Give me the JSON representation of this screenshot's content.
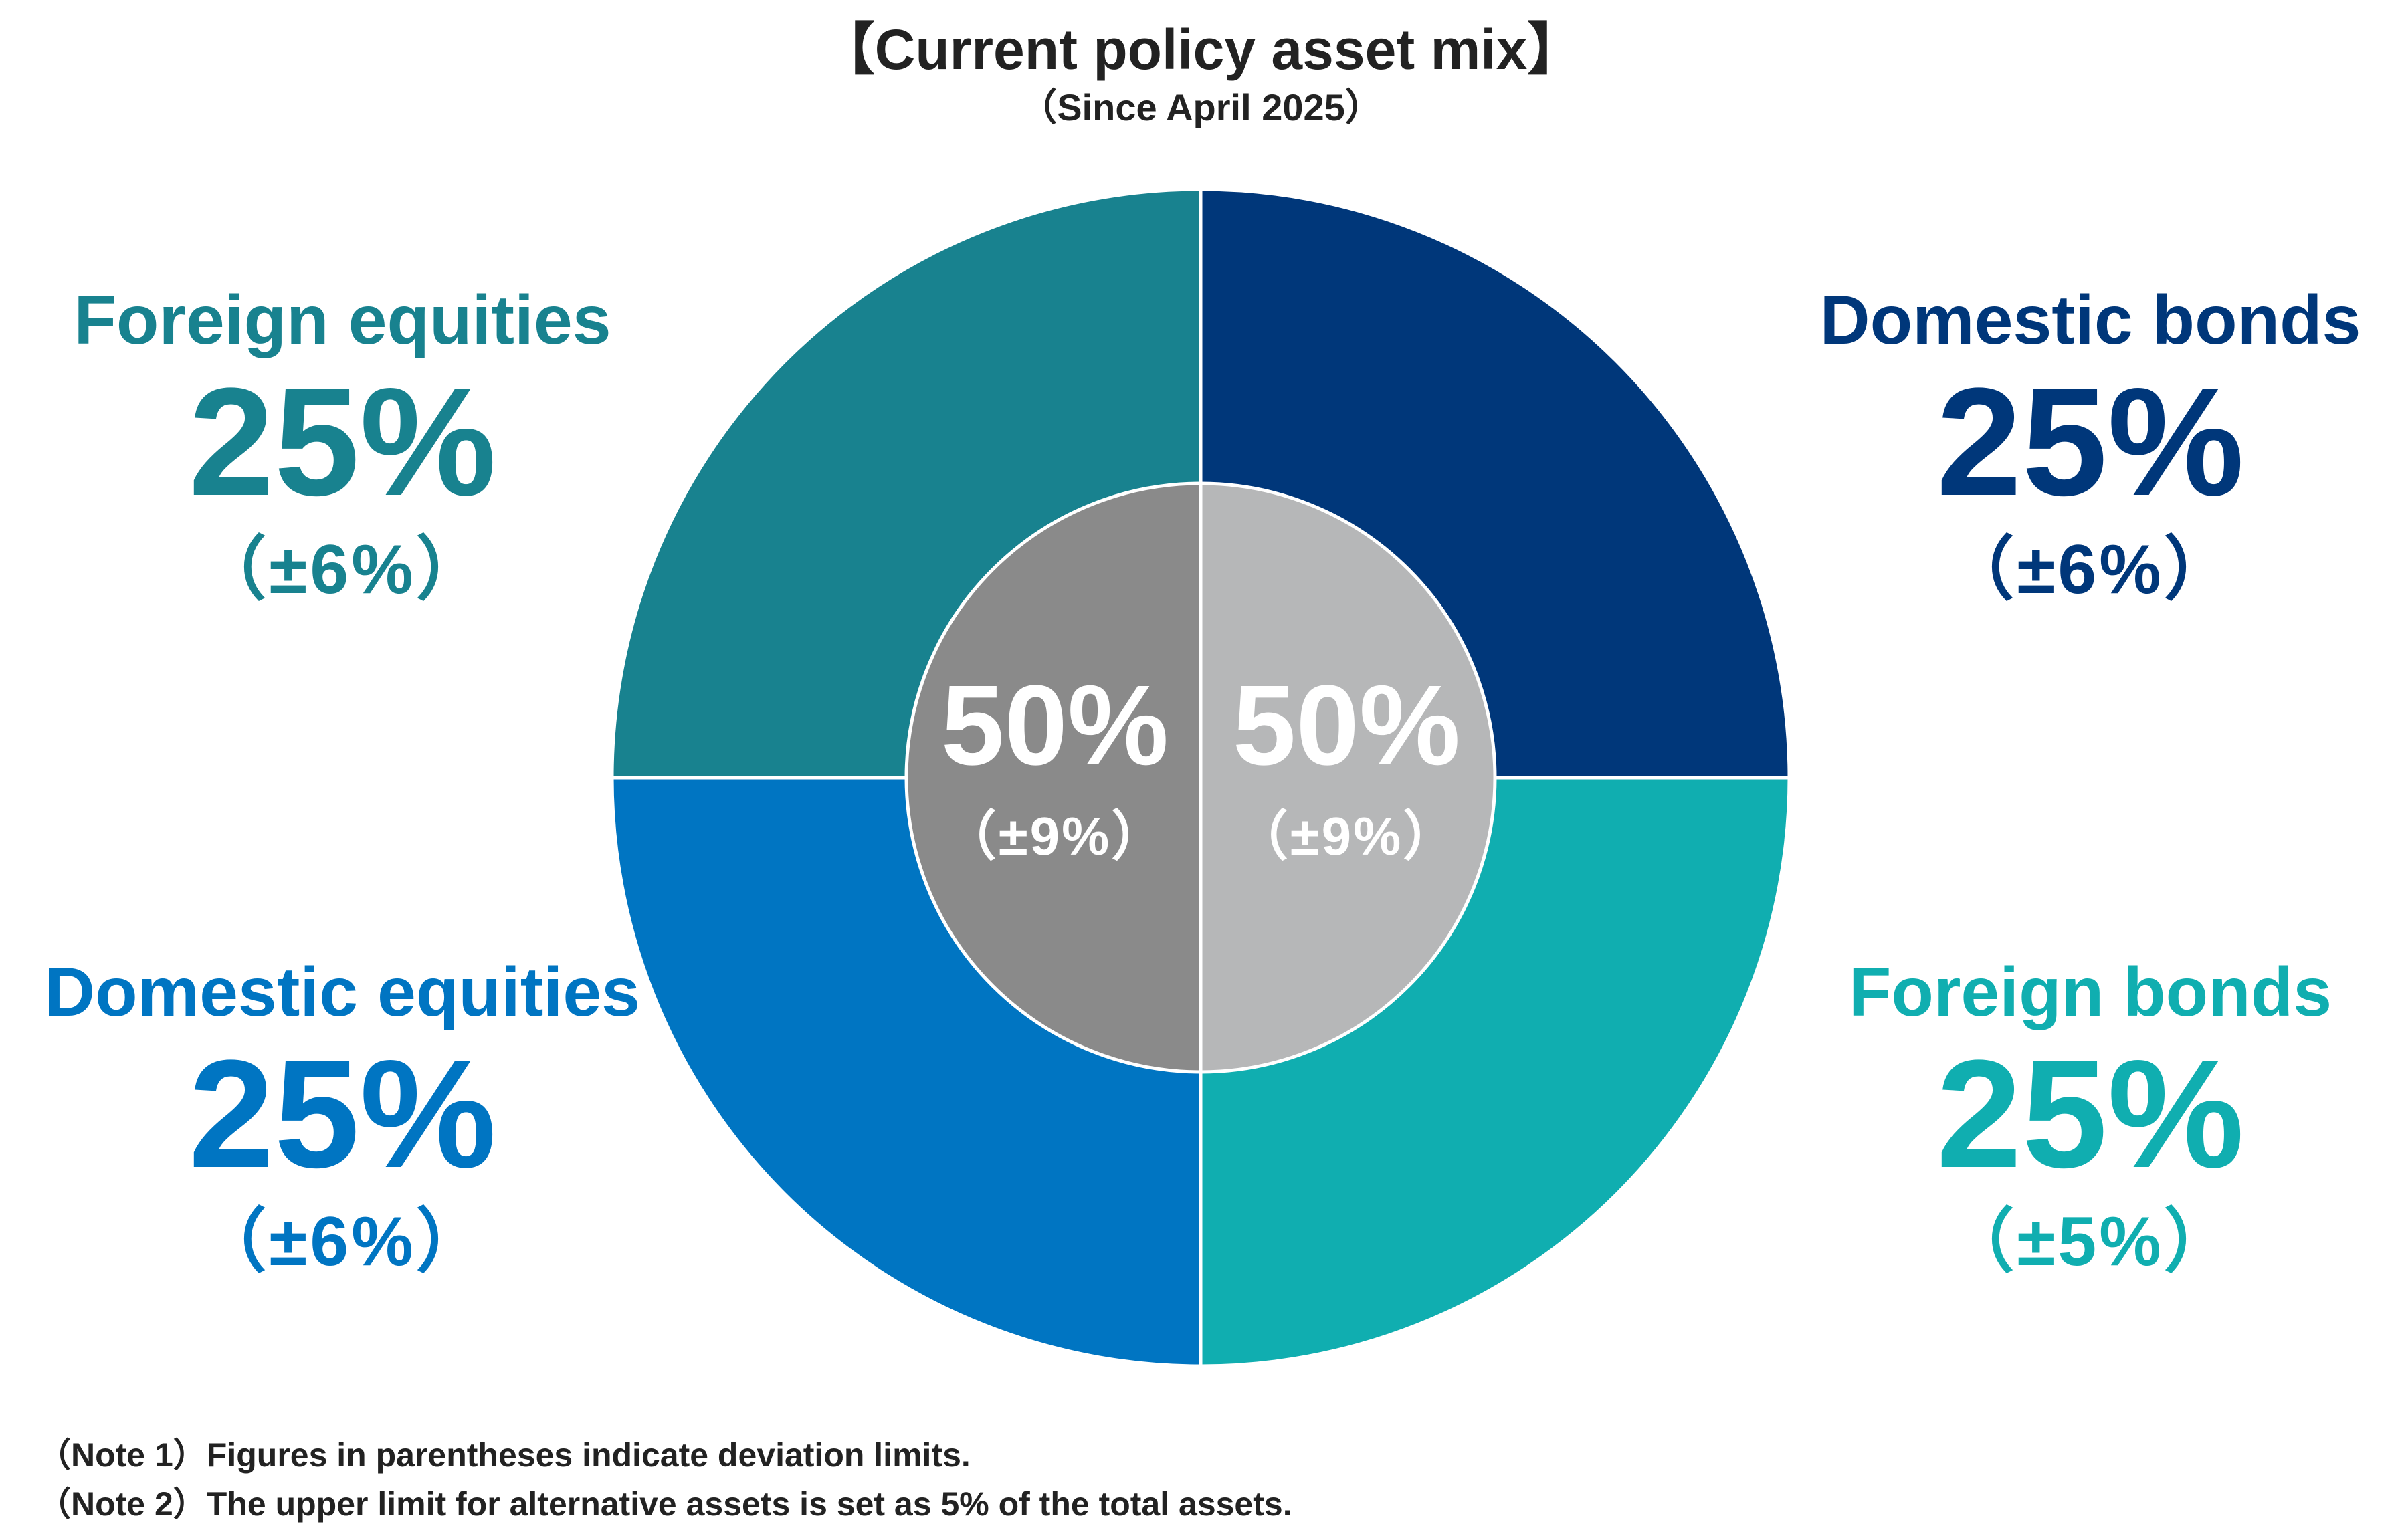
{
  "chart_data": {
    "type": "pie",
    "title": "【Current policy asset mix】",
    "subtitle": "（Since April 2025）",
    "outer_ring": [
      {
        "name": "Domestic bonds",
        "value": 25,
        "value_label": "25%",
        "deviation": "（±6%）",
        "color": "#00377a"
      },
      {
        "name": "Foreign bonds",
        "value": 25,
        "value_label": "25%",
        "deviation": "（±5%）",
        "color": "#10aeb0"
      },
      {
        "name": "Domestic equities",
        "value": 25,
        "value_label": "25%",
        "deviation": "（±6%）",
        "color": "#0075c2"
      },
      {
        "name": "Foreign equities",
        "value": 25,
        "value_label": "25%",
        "deviation": "（±6%）",
        "color": "#18828f"
      }
    ],
    "inner_ring": [
      {
        "value": 50,
        "value_label": "50%",
        "deviation": "（±9%）",
        "color": "#b6b7b8"
      },
      {
        "value": 50,
        "value_label": "50%",
        "deviation": "（±9%）",
        "color": "#8a8a8a"
      }
    ]
  },
  "notes": [
    "（Note 1）Figures in parentheses indicate deviation limits.",
    "（Note 2）The upper limit for alternative assets is set as 5% of the total assets."
  ]
}
